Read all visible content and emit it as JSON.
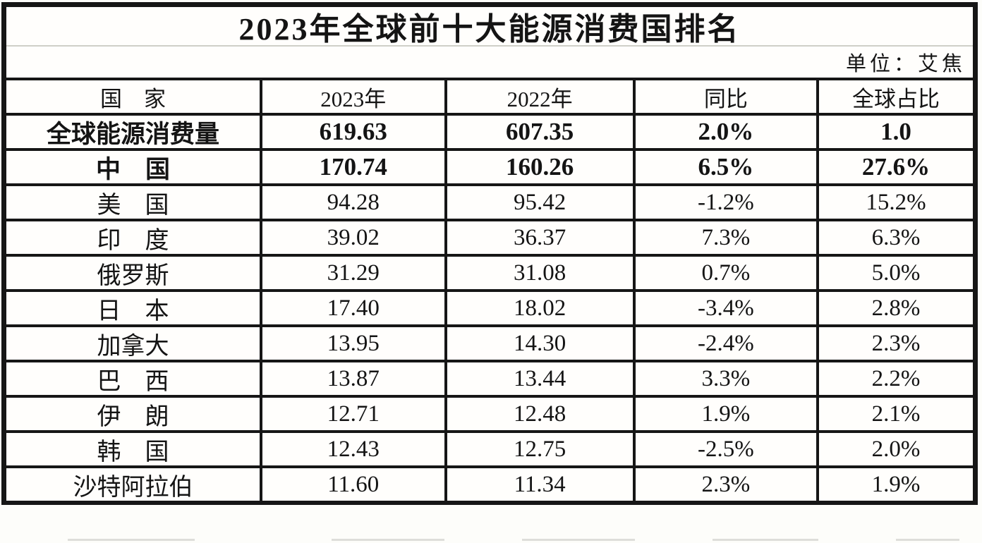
{
  "title": "2023年全球前十大能源消费国排名",
  "unit_label": "单位：艾焦",
  "table": {
    "headers": [
      "国　家",
      "2023年",
      "2022年",
      "同比",
      "全球占比"
    ],
    "rows": [
      {
        "country": "全球能源消费量",
        "y2023": "619.63",
        "y2022": "607.35",
        "yoy": "2.0%",
        "share": "1.0"
      },
      {
        "country": "中　国",
        "y2023": "170.74",
        "y2022": "160.26",
        "yoy": "6.5%",
        "share": "27.6%"
      },
      {
        "country": "美　国",
        "y2023": "94.28",
        "y2022": "95.42",
        "yoy": "-1.2%",
        "share": "15.2%"
      },
      {
        "country": "印　度",
        "y2023": "39.02",
        "y2022": "36.37",
        "yoy": "7.3%",
        "share": "6.3%"
      },
      {
        "country": "俄罗斯",
        "y2023": "31.29",
        "y2022": "31.08",
        "yoy": "0.7%",
        "share": "5.0%"
      },
      {
        "country": "日　本",
        "y2023": "17.40",
        "y2022": "18.02",
        "yoy": "-3.4%",
        "share": "2.8%"
      },
      {
        "country": "加拿大",
        "y2023": "13.95",
        "y2022": "14.30",
        "yoy": "-2.4%",
        "share": "2.3%"
      },
      {
        "country": "巴　西",
        "y2023": "13.87",
        "y2022": "13.44",
        "yoy": "3.3%",
        "share": "2.2%"
      },
      {
        "country": "伊　朗",
        "y2023": "12.71",
        "y2022": "12.48",
        "yoy": "1.9%",
        "share": "2.1%"
      },
      {
        "country": "韩　国",
        "y2023": "12.43",
        "y2022": "12.75",
        "yoy": "-2.5%",
        "share": "2.0%"
      },
      {
        "country": "沙特阿拉伯",
        "y2023": "11.60",
        "y2022": "11.34",
        "yoy": "2.3%",
        "share": "1.9%"
      }
    ]
  },
  "chart_data": {
    "type": "table",
    "title": "2023年全球前十大能源消费国排名",
    "unit": "艾焦",
    "columns": [
      "国家",
      "2023年",
      "2022年",
      "同比",
      "全球占比"
    ],
    "rows": [
      [
        "全球能源消费量",
        619.63,
        607.35,
        "2.0%",
        "1.0"
      ],
      [
        "中国",
        170.74,
        160.26,
        "6.5%",
        "27.6%"
      ],
      [
        "美国",
        94.28,
        95.42,
        "-1.2%",
        "15.2%"
      ],
      [
        "印度",
        39.02,
        36.37,
        "7.3%",
        "6.3%"
      ],
      [
        "俄罗斯",
        31.29,
        31.08,
        "0.7%",
        "5.0%"
      ],
      [
        "日本",
        17.4,
        18.02,
        "-3.4%",
        "2.8%"
      ],
      [
        "加拿大",
        13.95,
        14.3,
        "-2.4%",
        "2.3%"
      ],
      [
        "巴西",
        13.87,
        13.44,
        "3.3%",
        "2.2%"
      ],
      [
        "伊朗",
        12.71,
        12.48,
        "1.9%",
        "2.1%"
      ],
      [
        "韩国",
        12.43,
        12.75,
        "-2.5%",
        "2.0%"
      ],
      [
        "沙特阿拉伯",
        11.6,
        11.34,
        "2.3%",
        "1.9%"
      ]
    ],
    "colors": {
      "border": "#161616",
      "text": "#141414",
      "background": "#fdfdfa",
      "thin_divider": "#cfcfc8"
    }
  }
}
